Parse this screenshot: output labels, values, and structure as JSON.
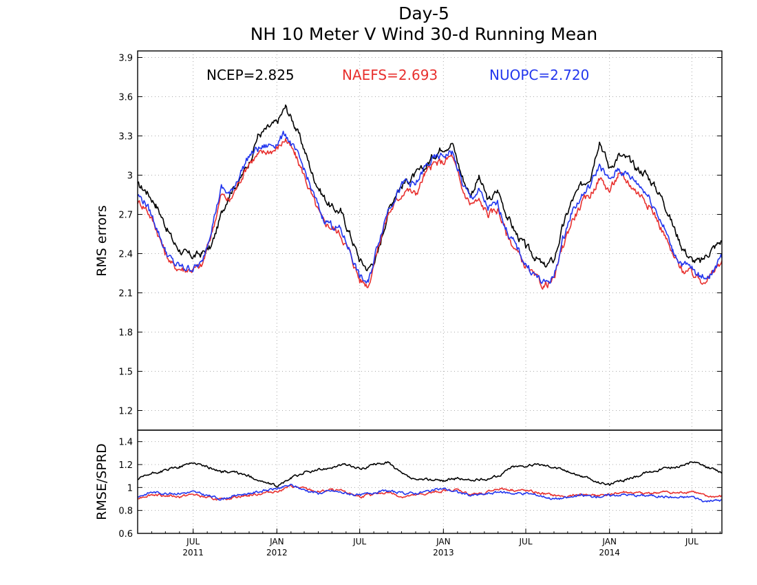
{
  "chart_data": [
    {
      "type": "line",
      "title": "Day-5",
      "subtitle": "NH 10 Meter V Wind 30-d Running Mean",
      "xlabel": "",
      "ylabel": "RMS errors",
      "ylim": [
        1.05,
        3.95
      ],
      "xlim": [
        "2011-03-01",
        "2014-09-05"
      ],
      "yticks": [
        "1.2",
        "1.5",
        "1.8",
        "2.1",
        "2.4",
        "2.7",
        "3",
        "3.3",
        "3.6",
        "3.9"
      ],
      "xticks": [
        {
          "date": "2011-07-01",
          "label": "JUL",
          "year": "2011"
        },
        {
          "date": "2012-01-01",
          "label": "JAN",
          "year": "2012"
        },
        {
          "date": "2012-07-01",
          "label": "JUL",
          "year": ""
        },
        {
          "date": "2013-01-01",
          "label": "JAN",
          "year": "2013"
        },
        {
          "date": "2013-07-01",
          "label": "JUL",
          "year": ""
        },
        {
          "date": "2014-01-01",
          "label": "JAN",
          "year": "2014"
        },
        {
          "date": "2014-07-01",
          "label": "JUL",
          "year": ""
        }
      ],
      "grid": true,
      "legend": "top",
      "annotations": [
        {
          "text": "NCEP=2.825",
          "color": "#000000"
        },
        {
          "text": "NAEFS=2.693",
          "color": "#e8302e"
        },
        {
          "text": "NUOPC=2.720",
          "color": "#2236ee"
        }
      ],
      "series": [
        {
          "color": "#000000",
          "x": [
            "2011-03-01",
            "2011-03-20",
            "2011-04-10",
            "2011-05-01",
            "2011-05-20",
            "2011-06-10",
            "2011-07-01",
            "2011-07-20",
            "2011-08-10",
            "2011-09-01",
            "2011-09-20",
            "2011-10-10",
            "2011-11-01",
            "2011-11-20",
            "2011-12-10",
            "2012-01-01",
            "2012-01-20",
            "2012-02-10",
            "2012-03-01",
            "2012-03-20",
            "2012-04-10",
            "2012-05-01",
            "2012-05-20",
            "2012-06-10",
            "2012-07-01",
            "2012-07-20",
            "2012-08-10",
            "2012-09-01",
            "2012-09-20",
            "2012-10-10",
            "2012-11-01",
            "2012-11-20",
            "2012-12-10",
            "2013-01-01",
            "2013-01-20",
            "2013-02-10",
            "2013-03-01",
            "2013-03-20",
            "2013-04-10",
            "2013-05-01",
            "2013-05-20",
            "2013-06-10",
            "2013-07-01",
            "2013-07-20",
            "2013-08-10",
            "2013-09-01",
            "2013-09-20",
            "2013-10-10",
            "2013-11-01",
            "2013-11-20",
            "2013-12-10",
            "2014-01-01",
            "2014-01-20",
            "2014-02-10",
            "2014-03-01",
            "2014-03-20",
            "2014-04-10",
            "2014-05-01",
            "2014-05-20",
            "2014-06-10",
            "2014-07-01",
            "2014-07-20",
            "2014-08-10",
            "2014-09-05"
          ],
          "values": [
            2.92,
            2.88,
            2.78,
            2.62,
            2.48,
            2.4,
            2.38,
            2.4,
            2.45,
            2.7,
            2.88,
            2.95,
            3.1,
            3.3,
            3.35,
            3.4,
            3.52,
            3.38,
            3.2,
            3.0,
            2.85,
            2.75,
            2.72,
            2.55,
            2.35,
            2.28,
            2.4,
            2.72,
            2.88,
            2.95,
            3.0,
            3.05,
            3.15,
            3.22,
            3.25,
            3.0,
            2.85,
            2.98,
            2.8,
            2.88,
            2.7,
            2.55,
            2.45,
            2.38,
            2.3,
            2.35,
            2.6,
            2.8,
            2.92,
            3.0,
            3.28,
            3.05,
            3.15,
            3.12,
            3.05,
            3.02,
            2.92,
            2.8,
            2.62,
            2.45,
            2.35,
            2.33,
            2.42,
            2.5
          ]
        },
        {
          "color": "#e8302e",
          "x": [
            "2011-03-01",
            "2011-03-20",
            "2011-04-10",
            "2011-05-01",
            "2011-05-20",
            "2011-06-10",
            "2011-07-01",
            "2011-07-20",
            "2011-08-10",
            "2011-09-01",
            "2011-09-20",
            "2011-10-10",
            "2011-11-01",
            "2011-11-20",
            "2011-12-10",
            "2012-01-01",
            "2012-01-20",
            "2012-02-10",
            "2012-03-01",
            "2012-03-20",
            "2012-04-10",
            "2012-05-01",
            "2012-05-20",
            "2012-06-10",
            "2012-07-01",
            "2012-07-20",
            "2012-08-10",
            "2012-09-01",
            "2012-09-20",
            "2012-10-10",
            "2012-11-01",
            "2012-11-20",
            "2012-12-10",
            "2013-01-01",
            "2013-01-20",
            "2013-02-10",
            "2013-03-01",
            "2013-03-20",
            "2013-04-10",
            "2013-05-01",
            "2013-05-20",
            "2013-06-10",
            "2013-07-01",
            "2013-07-20",
            "2013-08-10",
            "2013-09-01",
            "2013-09-20",
            "2013-10-10",
            "2013-11-01",
            "2013-11-20",
            "2013-12-10",
            "2014-01-01",
            "2014-01-20",
            "2014-02-10",
            "2014-03-01",
            "2014-03-20",
            "2014-04-10",
            "2014-05-01",
            "2014-05-20",
            "2014-06-10",
            "2014-07-01",
            "2014-07-20",
            "2014-08-10",
            "2014-09-05"
          ],
          "values": [
            2.8,
            2.75,
            2.6,
            2.4,
            2.3,
            2.28,
            2.28,
            2.3,
            2.55,
            2.85,
            2.8,
            2.95,
            3.1,
            3.15,
            3.18,
            3.2,
            3.28,
            3.15,
            3.0,
            2.82,
            2.65,
            2.6,
            2.55,
            2.4,
            2.2,
            2.16,
            2.45,
            2.7,
            2.8,
            2.9,
            2.85,
            3.0,
            3.08,
            3.1,
            3.15,
            2.9,
            2.78,
            2.8,
            2.7,
            2.74,
            2.55,
            2.42,
            2.3,
            2.22,
            2.15,
            2.2,
            2.45,
            2.65,
            2.78,
            2.85,
            2.98,
            2.88,
            3.0,
            2.95,
            2.88,
            2.82,
            2.7,
            2.55,
            2.38,
            2.28,
            2.25,
            2.2,
            2.22,
            2.35
          ]
        },
        {
          "color": "#2236ee",
          "x": [
            "2011-03-01",
            "2011-03-20",
            "2011-04-10",
            "2011-05-01",
            "2011-05-20",
            "2011-06-10",
            "2011-07-01",
            "2011-07-20",
            "2011-08-10",
            "2011-09-01",
            "2011-09-20",
            "2011-10-10",
            "2011-11-01",
            "2011-11-20",
            "2011-12-10",
            "2012-01-01",
            "2012-01-20",
            "2012-02-10",
            "2012-03-01",
            "2012-03-20",
            "2012-04-10",
            "2012-05-01",
            "2012-05-20",
            "2012-06-10",
            "2012-07-01",
            "2012-07-20",
            "2012-08-10",
            "2012-09-01",
            "2012-09-20",
            "2012-10-10",
            "2012-11-01",
            "2012-11-20",
            "2012-12-10",
            "2013-01-01",
            "2013-01-20",
            "2013-02-10",
            "2013-03-01",
            "2013-03-20",
            "2013-04-10",
            "2013-05-01",
            "2013-05-20",
            "2013-06-10",
            "2013-07-01",
            "2013-07-20",
            "2013-08-10",
            "2013-09-01",
            "2013-09-20",
            "2013-10-10",
            "2013-11-01",
            "2013-11-20",
            "2013-12-10",
            "2014-01-01",
            "2014-01-20",
            "2014-02-10",
            "2014-03-01",
            "2014-03-20",
            "2014-04-10",
            "2014-05-01",
            "2014-05-20",
            "2014-06-10",
            "2014-07-01",
            "2014-07-20",
            "2014-08-10",
            "2014-09-05"
          ],
          "values": [
            2.85,
            2.78,
            2.62,
            2.42,
            2.32,
            2.29,
            2.29,
            2.32,
            2.6,
            2.9,
            2.85,
            3.0,
            3.15,
            3.2,
            3.22,
            3.25,
            3.32,
            3.18,
            3.05,
            2.86,
            2.68,
            2.62,
            2.58,
            2.42,
            2.22,
            2.17,
            2.48,
            2.74,
            2.86,
            2.95,
            2.92,
            3.05,
            3.12,
            3.15,
            3.18,
            2.95,
            2.82,
            2.88,
            2.74,
            2.78,
            2.58,
            2.45,
            2.32,
            2.24,
            2.17,
            2.22,
            2.5,
            2.72,
            2.84,
            2.92,
            3.08,
            2.95,
            3.05,
            3.0,
            2.95,
            2.88,
            2.76,
            2.6,
            2.42,
            2.32,
            2.28,
            2.22,
            2.24,
            2.37
          ]
        }
      ]
    },
    {
      "type": "line",
      "xlabel": "",
      "ylabel": "RMSE/SPRD",
      "ylim": [
        0.6,
        1.5
      ],
      "xlim": [
        "2011-03-01",
        "2014-09-05"
      ],
      "yticks": [
        "0.6",
        "0.8",
        "1",
        "1.2",
        "1.4"
      ],
      "grid": true,
      "series": [
        {
          "color": "#000000",
          "x": [
            "2011-03-01",
            "2011-04-01",
            "2011-05-01",
            "2011-06-01",
            "2011-07-01",
            "2011-08-01",
            "2011-09-01",
            "2011-10-01",
            "2011-11-01",
            "2011-12-01",
            "2012-01-01",
            "2012-02-01",
            "2012-03-01",
            "2012-04-01",
            "2012-05-01",
            "2012-06-01",
            "2012-07-01",
            "2012-08-01",
            "2012-09-01",
            "2012-10-01",
            "2012-11-01",
            "2012-12-01",
            "2013-01-01",
            "2013-02-01",
            "2013-03-01",
            "2013-04-01",
            "2013-05-01",
            "2013-06-01",
            "2013-07-01",
            "2013-08-01",
            "2013-09-01",
            "2013-10-01",
            "2013-11-01",
            "2013-12-01",
            "2014-01-01",
            "2014-02-01",
            "2014-03-01",
            "2014-04-01",
            "2014-05-01",
            "2014-06-01",
            "2014-07-01",
            "2014-08-01",
            "2014-09-05"
          ],
          "values": [
            1.07,
            1.12,
            1.15,
            1.18,
            1.22,
            1.18,
            1.14,
            1.13,
            1.1,
            1.05,
            1.01,
            1.08,
            1.13,
            1.15,
            1.18,
            1.2,
            1.16,
            1.2,
            1.22,
            1.12,
            1.06,
            1.07,
            1.06,
            1.08,
            1.06,
            1.07,
            1.1,
            1.18,
            1.19,
            1.2,
            1.18,
            1.14,
            1.1,
            1.05,
            1.03,
            1.06,
            1.1,
            1.14,
            1.17,
            1.18,
            1.22,
            1.18,
            1.13
          ]
        },
        {
          "color": "#e8302e",
          "x": [
            "2011-03-01",
            "2011-04-01",
            "2011-05-01",
            "2011-06-01",
            "2011-07-01",
            "2011-08-01",
            "2011-09-01",
            "2011-10-01",
            "2011-11-01",
            "2011-12-01",
            "2012-01-01",
            "2012-02-01",
            "2012-03-01",
            "2012-04-01",
            "2012-05-01",
            "2012-06-01",
            "2012-07-01",
            "2012-08-01",
            "2012-09-01",
            "2012-10-01",
            "2012-11-01",
            "2012-12-01",
            "2013-01-01",
            "2013-02-01",
            "2013-03-01",
            "2013-04-01",
            "2013-05-01",
            "2013-06-01",
            "2013-07-01",
            "2013-08-01",
            "2013-09-01",
            "2013-10-01",
            "2013-11-01",
            "2013-12-01",
            "2014-01-01",
            "2014-02-01",
            "2014-03-01",
            "2014-04-01",
            "2014-05-01",
            "2014-06-01",
            "2014-07-01",
            "2014-08-01",
            "2014-09-05"
          ],
          "values": [
            0.91,
            0.94,
            0.93,
            0.92,
            0.94,
            0.91,
            0.89,
            0.92,
            0.93,
            0.95,
            0.97,
            1.01,
            0.99,
            0.96,
            0.98,
            0.96,
            0.92,
            0.94,
            0.96,
            0.92,
            0.93,
            0.95,
            0.97,
            0.98,
            0.94,
            0.95,
            0.99,
            0.98,
            0.97,
            0.95,
            0.93,
            0.92,
            0.94,
            0.93,
            0.94,
            0.96,
            0.95,
            0.95,
            0.96,
            0.95,
            0.97,
            0.92,
            0.92
          ]
        },
        {
          "color": "#2236ee",
          "x": [
            "2011-03-01",
            "2011-04-01",
            "2011-05-01",
            "2011-06-01",
            "2011-07-01",
            "2011-08-01",
            "2011-09-01",
            "2011-10-01",
            "2011-11-01",
            "2011-12-01",
            "2012-01-01",
            "2012-02-01",
            "2012-03-01",
            "2012-04-01",
            "2012-05-01",
            "2012-06-01",
            "2012-07-01",
            "2012-08-01",
            "2012-09-01",
            "2012-10-01",
            "2012-11-01",
            "2012-12-01",
            "2013-01-01",
            "2013-02-01",
            "2013-03-01",
            "2013-04-01",
            "2013-05-01",
            "2013-06-01",
            "2013-07-01",
            "2013-08-01",
            "2013-09-01",
            "2013-10-01",
            "2013-11-01",
            "2013-12-01",
            "2014-01-01",
            "2014-02-01",
            "2014-03-01",
            "2014-04-01",
            "2014-05-01",
            "2014-06-01",
            "2014-07-01",
            "2014-08-01",
            "2014-09-05"
          ],
          "values": [
            0.92,
            0.96,
            0.95,
            0.95,
            0.96,
            0.93,
            0.9,
            0.93,
            0.95,
            0.97,
            0.99,
            1.02,
            0.98,
            0.95,
            0.97,
            0.95,
            0.93,
            0.96,
            0.97,
            0.95,
            0.95,
            0.97,
            0.99,
            0.96,
            0.93,
            0.94,
            0.96,
            0.95,
            0.95,
            0.93,
            0.9,
            0.91,
            0.93,
            0.92,
            0.93,
            0.94,
            0.93,
            0.93,
            0.92,
            0.91,
            0.92,
            0.88,
            0.89
          ]
        }
      ]
    }
  ]
}
